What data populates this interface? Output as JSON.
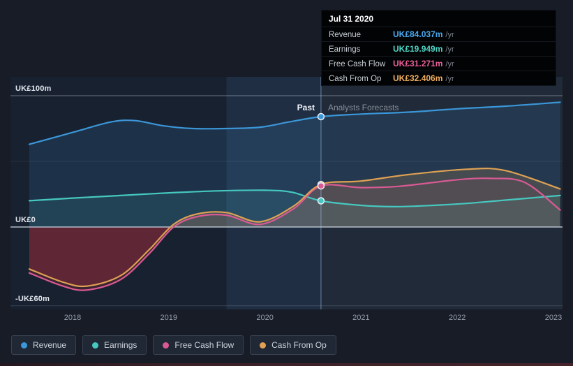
{
  "tooltip": {
    "date": "Jul 31 2020",
    "rows": [
      {
        "label": "Revenue",
        "value": "UK£84.037m",
        "unit": "/yr",
        "color": "#4aa8f0"
      },
      {
        "label": "Earnings",
        "value": "UK£19.949m",
        "unit": "/yr",
        "color": "#4fd4c4"
      },
      {
        "label": "Free Cash Flow",
        "value": "UK£31.271m",
        "unit": "/yr",
        "color": "#ec5f9b"
      },
      {
        "label": "Cash From Op",
        "value": "UK£32.406m",
        "unit": "/yr",
        "color": "#f0ad5f"
      }
    ]
  },
  "labels": {
    "past": "Past",
    "forecast": "Analysts Forecasts"
  },
  "legend": [
    {
      "label": "Revenue",
      "color": "#3b96d8"
    },
    {
      "label": "Earnings",
      "color": "#46c8c0"
    },
    {
      "label": "Free Cash Flow",
      "color": "#d95a93"
    },
    {
      "label": "Cash From Op",
      "color": "#dfa153"
    }
  ],
  "chart_data": {
    "type": "line",
    "title": "",
    "y_unit": "UK£m",
    "y_tick_labels": [
      {
        "text": "UK£100m",
        "value": 100
      },
      {
        "text": "UK£0",
        "value": 0
      },
      {
        "text": "-UK£60m",
        "value": -60
      }
    ],
    "x_ticks": [
      2018,
      2019,
      2020,
      2021,
      2022,
      2023
    ],
    "x_range": [
      2017.5,
      2023.15
    ],
    "y_range": [
      -75,
      115
    ],
    "divider_x": 2020.583,
    "divider_date": "Jul 31 2020",
    "highlight_band": [
      2019.6,
      2020.583
    ],
    "series": [
      {
        "name": "Revenue",
        "color": "#3b96d8",
        "fill": "rgba(59,150,216,0.15)",
        "neg_fill": null,
        "divider_value": 84.037,
        "points": [
          [
            2017.55,
            63
          ],
          [
            2018.0,
            72
          ],
          [
            2018.4,
            80
          ],
          [
            2018.65,
            81
          ],
          [
            2018.95,
            77
          ],
          [
            2019.25,
            75
          ],
          [
            2019.6,
            75
          ],
          [
            2019.95,
            76
          ],
          [
            2020.25,
            80
          ],
          [
            2020.583,
            84.037
          ],
          [
            2021.0,
            86
          ],
          [
            2021.5,
            87.5
          ],
          [
            2022.0,
            90
          ],
          [
            2022.5,
            92
          ],
          [
            2023.07,
            95
          ]
        ]
      },
      {
        "name": "Earnings",
        "color": "#46c8c0",
        "fill": "rgba(70,200,192,0.12)",
        "neg_fill": null,
        "divider_value": 19.949,
        "points": [
          [
            2017.55,
            20
          ],
          [
            2018.0,
            22
          ],
          [
            2018.5,
            24
          ],
          [
            2019.0,
            26
          ],
          [
            2019.5,
            27.5
          ],
          [
            2020.0,
            28
          ],
          [
            2020.28,
            26.5
          ],
          [
            2020.583,
            19.949
          ],
          [
            2021.0,
            16.5
          ],
          [
            2021.35,
            15.5
          ],
          [
            2021.75,
            16.5
          ],
          [
            2022.1,
            18
          ],
          [
            2022.5,
            20.5
          ],
          [
            2023.07,
            24
          ]
        ]
      },
      {
        "name": "Free Cash Flow",
        "color": "#d95a93",
        "fill": "rgba(217,90,147,0.08)",
        "neg_fill": "rgba(150,40,55,0.30)",
        "divider_value": 31.271,
        "points": [
          [
            2017.55,
            -35
          ],
          [
            2017.9,
            -45
          ],
          [
            2018.15,
            -48
          ],
          [
            2018.5,
            -40
          ],
          [
            2018.8,
            -20
          ],
          [
            2019.05,
            0
          ],
          [
            2019.3,
            8
          ],
          [
            2019.6,
            9
          ],
          [
            2019.95,
            2
          ],
          [
            2020.3,
            14
          ],
          [
            2020.583,
            31.271
          ],
          [
            2021.0,
            30
          ],
          [
            2021.4,
            31
          ],
          [
            2022.0,
            36
          ],
          [
            2022.35,
            37
          ],
          [
            2022.7,
            34
          ],
          [
            2023.07,
            13
          ]
        ]
      },
      {
        "name": "Cash From Op",
        "color": "#dfa153",
        "fill": "rgba(223,161,83,0.18)",
        "neg_fill": "rgba(160,45,60,0.35)",
        "divider_value": 32.406,
        "points": [
          [
            2017.55,
            -32
          ],
          [
            2017.9,
            -42
          ],
          [
            2018.15,
            -45
          ],
          [
            2018.5,
            -37
          ],
          [
            2018.8,
            -17
          ],
          [
            2019.05,
            2
          ],
          [
            2019.3,
            10
          ],
          [
            2019.6,
            11
          ],
          [
            2019.95,
            4
          ],
          [
            2020.3,
            16
          ],
          [
            2020.583,
            32.406
          ],
          [
            2021.0,
            35
          ],
          [
            2021.5,
            40
          ],
          [
            2022.1,
            44
          ],
          [
            2022.5,
            43
          ],
          [
            2023.07,
            29
          ]
        ]
      }
    ]
  }
}
